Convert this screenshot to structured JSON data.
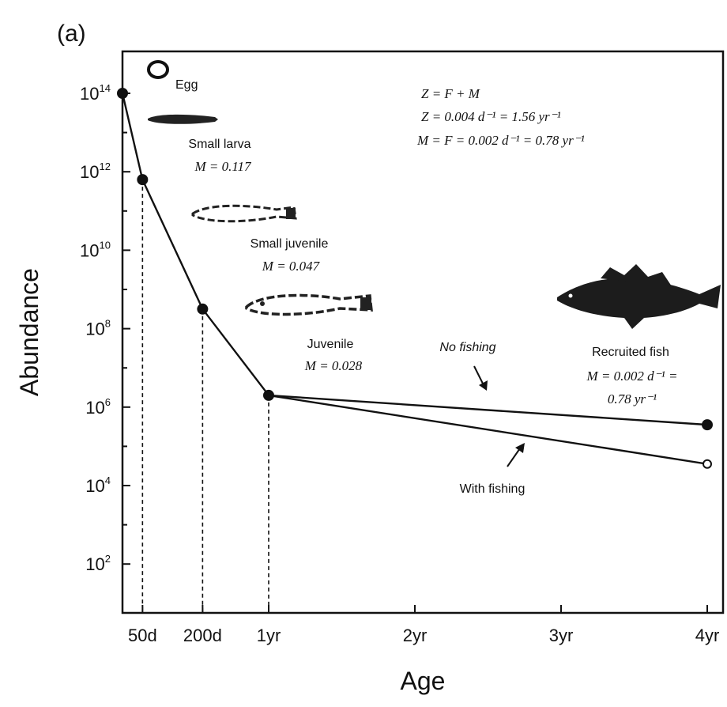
{
  "chart_data": {
    "type": "line",
    "panel_label": "(a)",
    "title": "",
    "xlabel": "Age",
    "ylabel": "Abundance",
    "x_unit": "days",
    "xlim": [
      0,
      1460
    ],
    "ylim_log10": [
      0.5,
      15
    ],
    "y_scale": "log",
    "y_ticks": [
      {
        "base": "10",
        "exp": "14",
        "log10": 14
      },
      {
        "base": "10",
        "exp": "12",
        "log10": 12
      },
      {
        "base": "10",
        "exp": "10",
        "log10": 10
      },
      {
        "base": "10",
        "exp": "8",
        "log10": 8
      },
      {
        "base": "10",
        "exp": "6",
        "log10": 6
      },
      {
        "base": "10",
        "exp": "4",
        "log10": 4
      },
      {
        "base": "10",
        "exp": "2",
        "log10": 2
      }
    ],
    "x_ticks": [
      {
        "label": "50d",
        "x": 50
      },
      {
        "label": "200d",
        "x": 200
      },
      {
        "label": "1yr",
        "x": 365
      },
      {
        "label": "2yr",
        "x": 730
      },
      {
        "label": "3yr",
        "x": 1095
      },
      {
        "label": "4yr",
        "x": 1460
      }
    ],
    "series": [
      {
        "name": "No fishing",
        "marker": "filled",
        "points": [
          {
            "x": 0,
            "log10": 14
          },
          {
            "x": 50,
            "log10": 11.8
          },
          {
            "x": 200,
            "log10": 8.5
          },
          {
            "x": 365,
            "log10": 6.3
          },
          {
            "x": 1460,
            "log10": 5.55
          }
        ]
      },
      {
        "name": "With fishing",
        "marker": "open",
        "points": [
          {
            "x": 365,
            "log10": 6.3
          },
          {
            "x": 1460,
            "log10": 4.55
          }
        ]
      }
    ],
    "drop_lines_x": [
      50,
      200,
      365
    ],
    "annotations": {
      "egg": "Egg",
      "small_larva": "Small larva",
      "small_larva_m": "M = 0.117",
      "small_juvenile": "Small juvenile",
      "small_juvenile_m": "M = 0.047",
      "juvenile": "Juvenile",
      "juvenile_m": "M = 0.028",
      "recruited_fish": "Recruited fish",
      "recruited_m1": "M = 0.002 d⁻¹ =",
      "recruited_m2": "0.78 yr⁻¹",
      "no_fishing": "No fishing",
      "with_fishing": "With fishing",
      "eq1": "Z = F + M",
      "eq2": "Z = 0.004 d⁻¹ = 1.56 yr⁻¹",
      "eq3": "M = F = 0.002 d⁻¹ = 0.78 yr⁻¹"
    }
  }
}
